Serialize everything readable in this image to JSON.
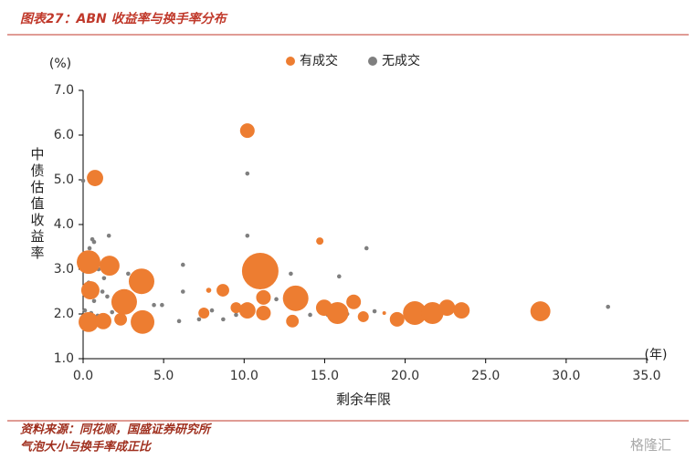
{
  "header": {
    "title": "图表27：ABN 收益率与换手率分布"
  },
  "chart_data": {
    "type": "bubble",
    "y_label": "中债估值收益率",
    "y_unit": "(%)",
    "x_label": "剩余年限",
    "x_unit": "(年)",
    "xlim": [
      0,
      35
    ],
    "ylim": [
      1,
      7
    ],
    "xticks": [
      {
        "value": 0,
        "label": "0.0"
      },
      {
        "value": 5,
        "label": "5.0"
      },
      {
        "value": 10,
        "label": "10.0"
      },
      {
        "value": 15,
        "label": "15.0"
      },
      {
        "value": 20,
        "label": "20.0"
      },
      {
        "value": 25,
        "label": "25.0"
      },
      {
        "value": 30,
        "label": "30.0"
      },
      {
        "value": 35,
        "label": "35.0"
      }
    ],
    "yticks": [
      {
        "value": 1,
        "label": "1.0"
      },
      {
        "value": 2,
        "label": "2.0"
      },
      {
        "value": 3,
        "label": "3.0"
      },
      {
        "value": 4,
        "label": "4.0"
      },
      {
        "value": 5,
        "label": "5.0"
      },
      {
        "value": 6,
        "label": "6.0"
      },
      {
        "value": 7,
        "label": "7.0"
      }
    ],
    "series": [
      {
        "name": "有成交",
        "color": "#ed7d31",
        "x": [
          10.2,
          0.74,
          14.7,
          11.0,
          0.34,
          1.64,
          3.63,
          0.45,
          2.55,
          3.69,
          0.34,
          1.25,
          2.33,
          8.68,
          7.8,
          7.5,
          9.5,
          10.2,
          11.2,
          11.2,
          13.2,
          13.0,
          14.97,
          15.8,
          16.8,
          17.4,
          19.5,
          20.6,
          21.7,
          22.6,
          23.5,
          28.4,
          18.7
        ],
        "y": [
          6.1,
          5.04,
          3.63,
          2.96,
          3.16,
          3.08,
          2.73,
          2.53,
          2.27,
          1.82,
          1.82,
          1.84,
          1.88,
          2.53,
          2.53,
          2.02,
          2.14,
          2.08,
          2.37,
          2.02,
          2.35,
          1.84,
          2.14,
          2.02,
          2.27,
          1.94,
          1.88,
          2.02,
          2.02,
          2.14,
          2.08,
          2.06,
          2.02
        ],
        "sizes": [
          16,
          20,
          4,
          100,
          42,
          30,
          49,
          25,
          49,
          42,
          30,
          20,
          12,
          12,
          2,
          9,
          9,
          20,
          16,
          16,
          49,
          12,
          20,
          36,
          16,
          9,
          16,
          42,
          36,
          20,
          20,
          30,
          1
        ]
      },
      {
        "name": "无成交",
        "color": "#7f7f7f",
        "x": [
          0,
          10.2,
          0.57,
          0.68,
          1.6,
          10.2,
          17.6,
          6.2,
          0.4,
          0.5,
          0.7,
          0.96,
          12.9,
          15.9,
          1.3,
          2.8,
          0.34,
          0.8,
          1.2,
          6.2,
          0.28,
          0.68,
          1.5,
          2.3,
          12.0,
          4.4,
          4.9,
          0.11,
          0.5,
          0.9,
          1.8,
          8.0,
          9.5,
          14.1,
          15.2,
          16.4,
          18.1,
          32.6,
          5.96,
          7.2,
          8.7,
          0.17,
          0.62,
          1.08
        ],
        "y": [
          4.98,
          5.14,
          3.67,
          3.61,
          3.75,
          3.75,
          3.47,
          3.1,
          3.47,
          3.2,
          3.14,
          3.0,
          2.9,
          2.84,
          2.8,
          2.9,
          2.7,
          2.6,
          2.5,
          2.5,
          2.39,
          2.29,
          2.39,
          2.41,
          2.33,
          2.2,
          2.2,
          2.08,
          2.02,
          1.96,
          2.04,
          2.08,
          1.98,
          1.98,
          1.98,
          2.0,
          2.06,
          2.16,
          1.84,
          1.88,
          1.88,
          1.78,
          1.84,
          1.92
        ]
      }
    ]
  },
  "footer": {
    "source": "资料来源：同花顺，国盛证券研究所",
    "note": "气泡大小与换手率成正比"
  },
  "watermark": "格隆汇"
}
